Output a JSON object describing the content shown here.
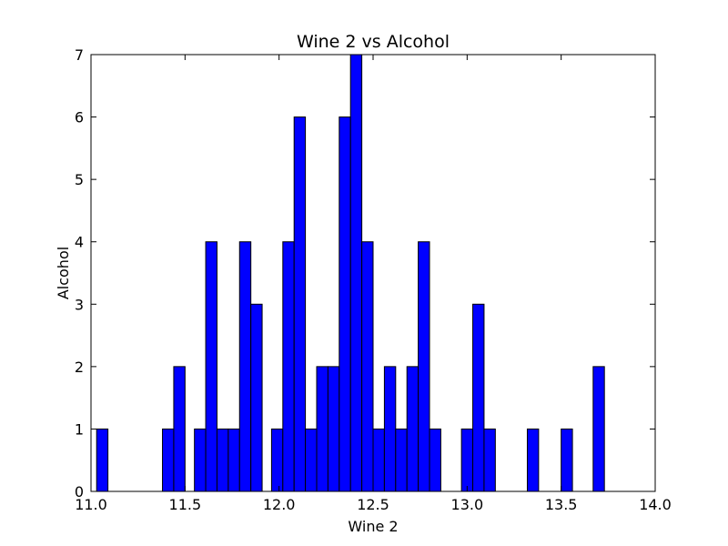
{
  "chart_data": {
    "type": "bar",
    "title": "Wine 2 vs Alcohol",
    "xlabel": "Wine 2",
    "ylabel": "Alcohol",
    "xlim": [
      11.0,
      14.0
    ],
    "ylim": [
      0,
      7
    ],
    "x_ticks": [
      "11.0",
      "11.5",
      "12.0",
      "12.5",
      "13.0",
      "13.5",
      "14.0"
    ],
    "y_ticks": [
      "0",
      "1",
      "2",
      "3",
      "4",
      "5",
      "6",
      "7"
    ],
    "bar_color": "#0000ff",
    "grid": false,
    "bins": [
      {
        "start": 11.03,
        "end": 11.09,
        "count": 1
      },
      {
        "start": 11.38,
        "end": 11.44,
        "count": 1
      },
      {
        "start": 11.44,
        "end": 11.5,
        "count": 2
      },
      {
        "start": 11.55,
        "end": 11.61,
        "count": 1
      },
      {
        "start": 11.61,
        "end": 11.67,
        "count": 4
      },
      {
        "start": 11.67,
        "end": 11.73,
        "count": 1
      },
      {
        "start": 11.73,
        "end": 11.79,
        "count": 1
      },
      {
        "start": 11.79,
        "end": 11.85,
        "count": 4
      },
      {
        "start": 11.85,
        "end": 11.91,
        "count": 3
      },
      {
        "start": 11.96,
        "end": 12.02,
        "count": 1
      },
      {
        "start": 12.02,
        "end": 12.08,
        "count": 4
      },
      {
        "start": 12.08,
        "end": 12.14,
        "count": 6
      },
      {
        "start": 12.14,
        "end": 12.2,
        "count": 1
      },
      {
        "start": 12.2,
        "end": 12.26,
        "count": 2
      },
      {
        "start": 12.26,
        "end": 12.32,
        "count": 2
      },
      {
        "start": 12.32,
        "end": 12.38,
        "count": 6
      },
      {
        "start": 12.38,
        "end": 12.44,
        "count": 7
      },
      {
        "start": 12.44,
        "end": 12.5,
        "count": 4
      },
      {
        "start": 12.5,
        "end": 12.56,
        "count": 1
      },
      {
        "start": 12.56,
        "end": 12.62,
        "count": 2
      },
      {
        "start": 12.62,
        "end": 12.68,
        "count": 1
      },
      {
        "start": 12.68,
        "end": 12.74,
        "count": 2
      },
      {
        "start": 12.74,
        "end": 12.8,
        "count": 4
      },
      {
        "start": 12.8,
        "end": 12.86,
        "count": 1
      },
      {
        "start": 12.97,
        "end": 13.03,
        "count": 1
      },
      {
        "start": 13.03,
        "end": 13.09,
        "count": 3
      },
      {
        "start": 13.09,
        "end": 13.15,
        "count": 1
      },
      {
        "start": 13.32,
        "end": 13.38,
        "count": 1
      },
      {
        "start": 13.5,
        "end": 13.56,
        "count": 1
      },
      {
        "start": 13.67,
        "end": 13.73,
        "count": 2
      }
    ]
  }
}
